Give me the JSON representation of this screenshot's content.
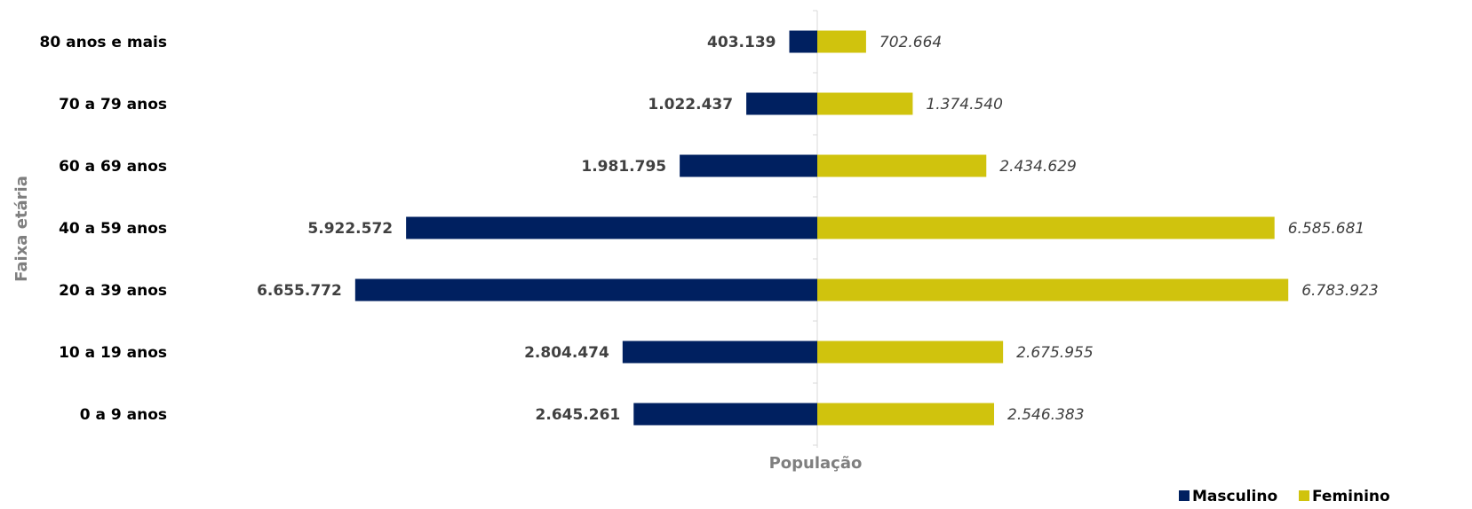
{
  "chart_data": {
    "type": "bar",
    "orientation": "horizontal",
    "layout": "population-pyramid",
    "title": "",
    "xlabel": "População",
    "ylabel": "Faixa etária",
    "categories": [
      "80 anos e mais",
      "70 a 79 anos",
      "60 a 69 anos",
      "40 a 59 anos",
      "20 a 39 anos",
      "10 a 19 anos",
      "0 a 9 anos"
    ],
    "series": [
      {
        "name": "Masculino",
        "color": "#002060",
        "values": [
          403139,
          1022437,
          1981795,
          5922572,
          6655772,
          2804474,
          2645261
        ],
        "labels": [
          "403.139",
          "1.022.437",
          "1.981.795",
          "5.922.572",
          "6.655.772",
          "2.804.474",
          "2.645.261"
        ],
        "side": "left"
      },
      {
        "name": "Feminino",
        "color": "#D0C30D",
        "values": [
          702664,
          1374540,
          2434629,
          6585681,
          6783923,
          2675955,
          2546383
        ],
        "labels": [
          "702.664",
          "1.374.540",
          "2.434.629",
          "6.585.681",
          "6.783.923",
          "2.675.955",
          "2.546.383"
        ],
        "side": "right"
      }
    ],
    "legend": "bottom-right",
    "grid": false
  }
}
